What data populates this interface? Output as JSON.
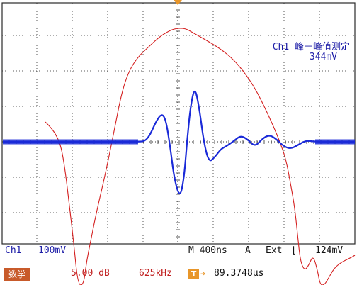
{
  "measurement": {
    "title": "Ch1 峰－峰值测定",
    "value": "344mV"
  },
  "status_bar": {
    "channel": "Ch1",
    "volts_per_div": "100mV",
    "timebase": "M 400ns",
    "trigger_mode": "A",
    "trigger_source": "Ext",
    "trigger_slope_symbol": "⌊",
    "trigger_level": "124mV"
  },
  "math_bar": {
    "label": "数学",
    "scale": "5.00 dB",
    "center_freq": "625kHz",
    "trigger_icon_label": "T",
    "trigger_position": "89.3748μs"
  },
  "colors": {
    "background": "#ffffff",
    "grid": "#2a2a2a",
    "ch1_trace": "#1a2ad8",
    "fft_trace": "#d42020",
    "trigger_marker": "#e8962a",
    "math_badge": "#c85a2a"
  }
}
